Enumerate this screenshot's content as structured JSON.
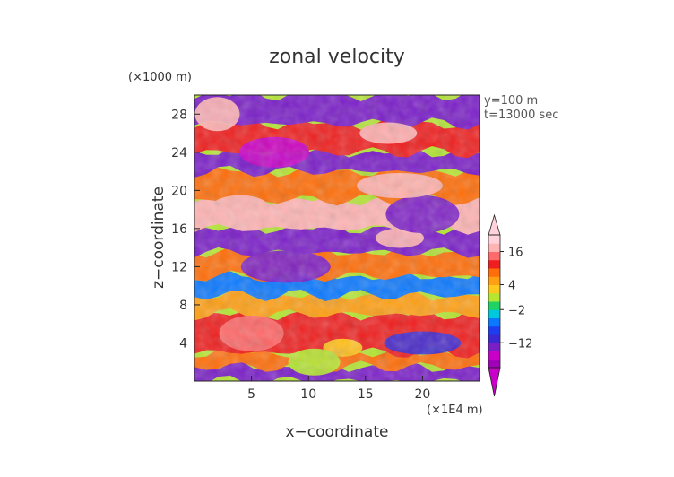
{
  "chart_data": {
    "type": "heatmap",
    "title": "zonal velocity",
    "xlabel": "x−coordinate",
    "ylabel": "z−coordinate",
    "x_unit": "(×1E4 m)",
    "y_unit": "(×1000 m)",
    "annotations": [
      "y=100 m",
      "t=13000 sec"
    ],
    "xlim": [
      0,
      25
    ],
    "ylim": [
      0,
      30
    ],
    "x_ticks": [
      5,
      10,
      15,
      20
    ],
    "y_ticks": [
      4,
      8,
      12,
      16,
      20,
      24,
      28
    ],
    "colorbar": {
      "tick_labels": [
        "16",
        "4",
        "−2",
        "−12"
      ],
      "tick_values": [
        16,
        4,
        -2,
        -12
      ],
      "levels": [
        -20,
        -16,
        -12,
        -9,
        -6,
        -4,
        -2,
        0,
        2,
        4,
        6,
        9,
        12,
        16,
        20
      ],
      "colors": [
        "#a000b8",
        "#c800c8",
        "#7a1ec8",
        "#3c28d2",
        "#1e3cf0",
        "#0a78ff",
        "#00c8dc",
        "#1ed264",
        "#b4e632",
        "#ffc81e",
        "#ffa014",
        "#ff6e0a",
        "#f01e1e",
        "#ff6a6a",
        "#ffb4b4",
        "#ffd2dc"
      ],
      "extend": "both"
    },
    "bands": [
      {
        "z": [
          0,
          1.5
        ],
        "value": -14
      },
      {
        "z": [
          1.5,
          3
        ],
        "value": 7
      },
      {
        "z": [
          3,
          7
        ],
        "value": 9
      },
      {
        "z": [
          7,
          9
        ],
        "value": 5
      },
      {
        "z": [
          9,
          11
        ],
        "value": -6
      },
      {
        "z": [
          11,
          13.5
        ],
        "value": 6
      },
      {
        "z": [
          13.5,
          16
        ],
        "value": -15
      },
      {
        "z": [
          16,
          19
        ],
        "value": 16
      },
      {
        "z": [
          19,
          22
        ],
        "value": 8
      },
      {
        "z": [
          22,
          24
        ],
        "value": -14
      },
      {
        "z": [
          24,
          27
        ],
        "value": 9
      },
      {
        "z": [
          27,
          30
        ],
        "value": -16
      }
    ],
    "features": [
      {
        "x": 13,
        "z": 3.5,
        "value": 2
      },
      {
        "x": 10.5,
        "z": 2,
        "value": 0
      },
      {
        "x": 5,
        "z": 5,
        "value": 12
      },
      {
        "x": 20,
        "z": 4,
        "value": -12
      },
      {
        "x": 8,
        "z": 12,
        "value": -14
      },
      {
        "x": 18,
        "z": 15,
        "value": 17
      },
      {
        "x": 4,
        "z": 18,
        "value": 17
      },
      {
        "x": 20,
        "z": 17.5,
        "value": -14
      },
      {
        "x": 18,
        "z": 20.5,
        "value": 17
      },
      {
        "x": 2,
        "z": 28,
        "value": 17
      },
      {
        "x": 17,
        "z": 26,
        "value": 17
      },
      {
        "x": 7,
        "z": 24,
        "value": -18
      }
    ]
  }
}
